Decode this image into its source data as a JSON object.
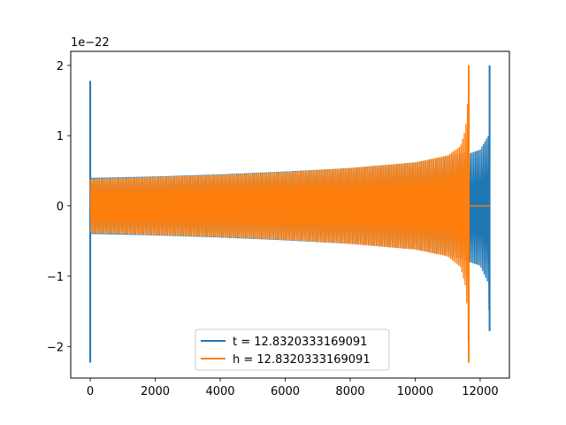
{
  "chart_data": {
    "type": "line",
    "title": "",
    "xlabel": "",
    "ylabel": "",
    "y_offset_label": "1e−22",
    "xlim": [
      -600,
      12900
    ],
    "ylim": [
      -2.45,
      2.2
    ],
    "xticks": [
      0,
      2000,
      4000,
      6000,
      8000,
      10000,
      12000
    ],
    "xtick_labels": [
      "0",
      "2000",
      "4000",
      "6000",
      "8000",
      "10000",
      "12000"
    ],
    "yticks": [
      -2,
      -1,
      0,
      1,
      2
    ],
    "ytick_labels": [
      "−2",
      "−1",
      "0",
      "1",
      "2"
    ],
    "grid": false,
    "legend_position": "bottom-center",
    "series": [
      {
        "name": "t = 12.8320333169091",
        "color": "#1f77b4",
        "envelope": {
          "x": [
            0,
            2000,
            4000,
            6000,
            8000,
            10000,
            11000,
            11600,
            11680,
            12000,
            12250,
            12290
          ],
          "upper": [
            0.4,
            0.42,
            0.45,
            0.49,
            0.54,
            0.62,
            0.7,
            0.78,
            0.75,
            0.8,
            1.0,
            1.6
          ],
          "lower": [
            -0.4,
            -0.42,
            -0.45,
            -0.49,
            -0.54,
            -0.62,
            -0.7,
            -0.78,
            -0.8,
            -0.85,
            -1.1,
            -1.78
          ]
        },
        "spikes": [
          {
            "x": 0,
            "max": 1.78,
            "min": -2.23
          },
          {
            "x": 12290,
            "max": 2.0,
            "min": -1.78
          }
        ],
        "flat_after": 12290,
        "x_end": 12300
      },
      {
        "name": "h = 12.8320333169091",
        "color": "#ff7f0e",
        "envelope": {
          "x": [
            0,
            2000,
            4000,
            6000,
            8000,
            10000,
            11000,
            11400,
            11550,
            11620,
            11650
          ],
          "upper": [
            0.38,
            0.41,
            0.44,
            0.48,
            0.54,
            0.62,
            0.72,
            0.85,
            1.1,
            1.5,
            2.0
          ],
          "lower": [
            -0.38,
            -0.41,
            -0.44,
            -0.48,
            -0.54,
            -0.62,
            -0.72,
            -0.87,
            -1.15,
            -1.6,
            -2.23
          ]
        },
        "spikes": [
          {
            "x": 11650,
            "max": 2.0,
            "min": -2.23
          }
        ],
        "flat_after": 11650,
        "x_end": 12300
      }
    ]
  }
}
